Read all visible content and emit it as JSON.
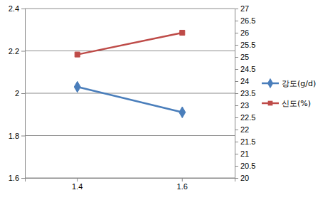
{
  "chart_data": {
    "type": "line",
    "categories": [
      "1.4",
      "1.6"
    ],
    "series": [
      {
        "name": "강도(g/d)",
        "color": "#4a7ebb",
        "marker": "diamond",
        "values": [
          2.03,
          1.91
        ]
      },
      {
        "name": "신도(%)",
        "color": "#be4b48",
        "marker": "square",
        "axis": "y2",
        "values": [
          25.1,
          26.0
        ]
      }
    ],
    "ylim": [
      1.6,
      2.4
    ],
    "yticks": [
      1.6,
      1.8,
      2,
      2.2,
      2.4
    ],
    "y2lim": [
      20,
      27
    ],
    "y2ticks": [
      20,
      20.5,
      21,
      21.5,
      22,
      22.5,
      23,
      23.5,
      24,
      24.5,
      25,
      25.5,
      26,
      26.5,
      27
    ],
    "grid": true,
    "legend": "right"
  }
}
